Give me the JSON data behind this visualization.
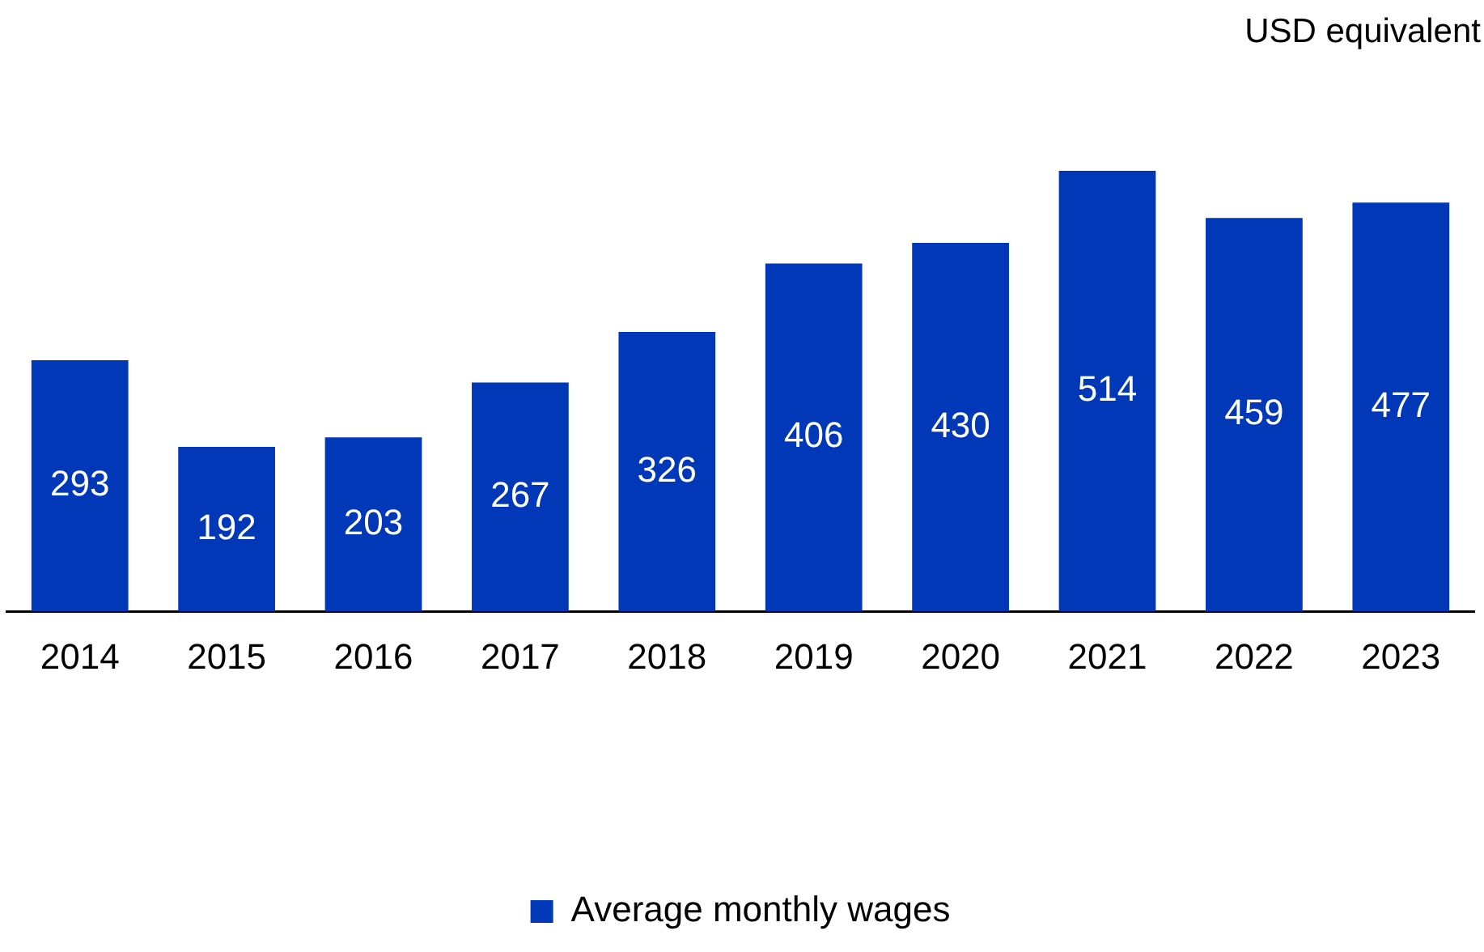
{
  "chart_data": {
    "type": "bar",
    "ylabel": "USD equivalent",
    "categories": [
      "2014",
      "2015",
      "2016",
      "2017",
      "2018",
      "2019",
      "2020",
      "2021",
      "2022",
      "2023"
    ],
    "series": [
      {
        "name": "Average monthly wages",
        "color": "#0038b8",
        "values": [
          293,
          192,
          203,
          267,
          326,
          406,
          430,
          514,
          459,
          477
        ]
      }
    ],
    "data_labels": true,
    "grid": false,
    "legend": "bottom"
  }
}
